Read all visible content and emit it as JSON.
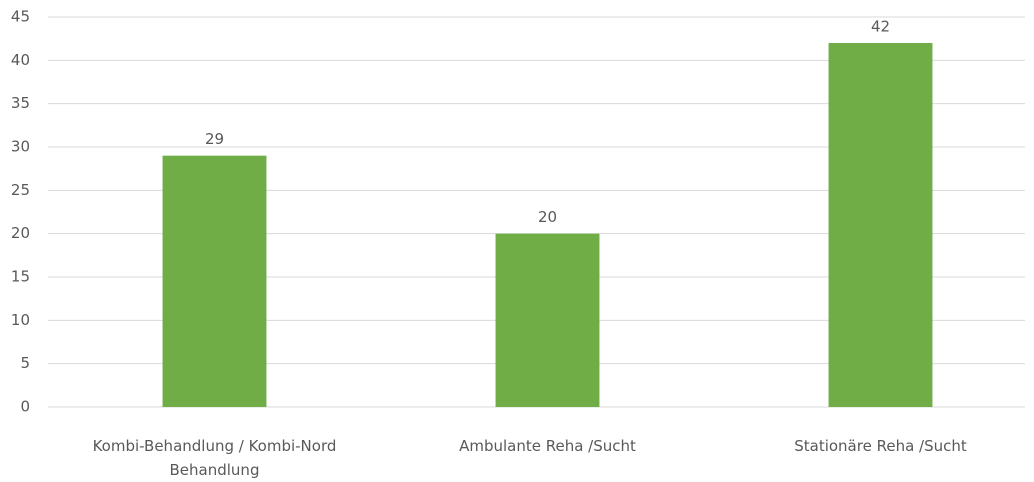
{
  "chart_data": {
    "type": "bar",
    "categories": [
      "Kombi-Behandlung / Kombi-Nord Behandlung",
      "Ambulante Reha /Sucht",
      "Stationäre Reha /Sucht"
    ],
    "values": [
      29,
      20,
      42
    ],
    "color": "#70ad47",
    "ylim": [
      0,
      45
    ],
    "yticks": [
      0,
      5,
      10,
      15,
      20,
      25,
      30,
      35,
      40,
      45
    ],
    "grid": true
  }
}
